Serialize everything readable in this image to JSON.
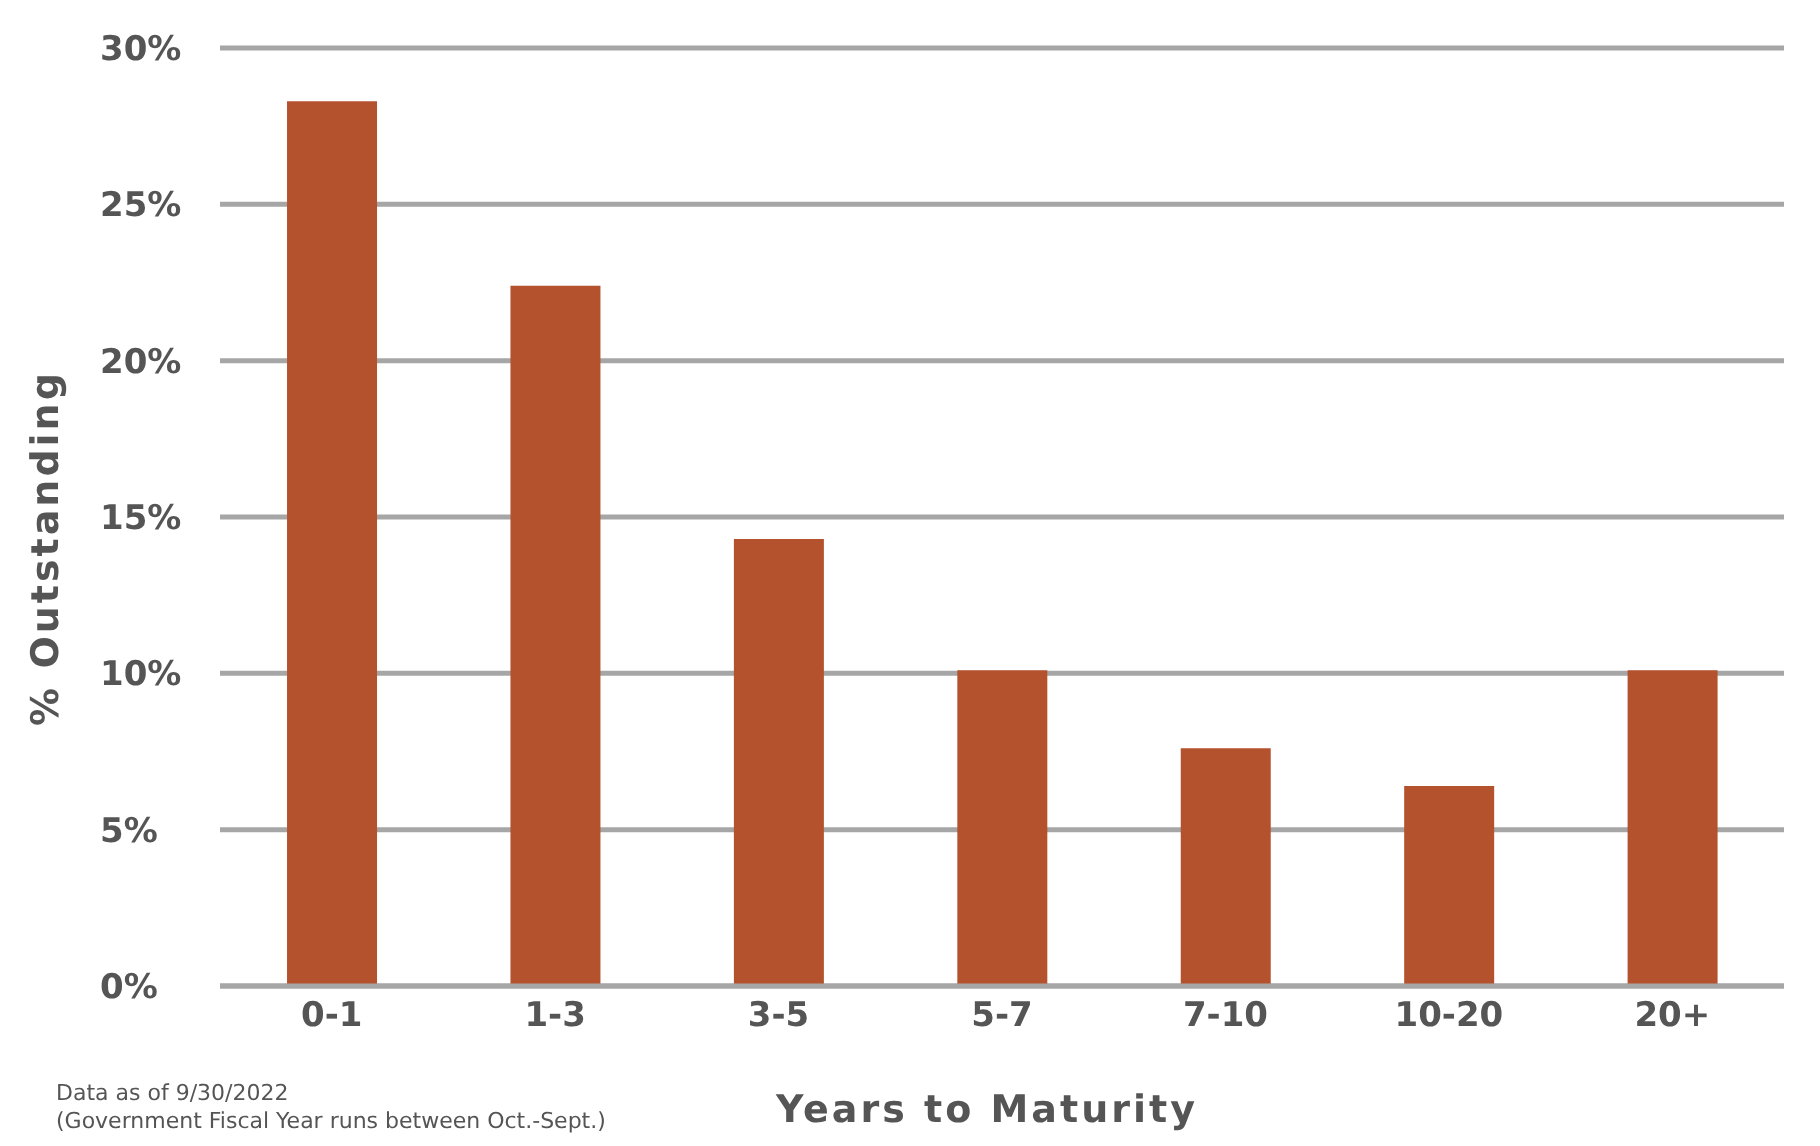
{
  "chart_data": {
    "type": "bar",
    "xlabel": "Years to Maturity",
    "ylabel": "% Outstanding",
    "categories": [
      "0-1",
      "1-3",
      "3-5",
      "5-7",
      "7-10",
      "10-20",
      "20+"
    ],
    "values": [
      28.3,
      22.4,
      14.3,
      10.1,
      7.6,
      6.4,
      10.1
    ],
    "color": "#b5522e",
    "ylim": [
      0,
      30
    ],
    "yticks": [
      {
        "value": 0,
        "label": "0%"
      },
      {
        "value": 5,
        "label": "5%"
      },
      {
        "value": 10,
        "label": "10%"
      },
      {
        "value": 15,
        "label": "15%"
      },
      {
        "value": 20,
        "label": "20%"
      },
      {
        "value": 25,
        "label": "25%"
      },
      {
        "value": 30,
        "label": "30%"
      }
    ],
    "grid": "y",
    "legend": false,
    "annotations": [
      "Data as of 9/30/2022",
      "(Government Fiscal Year runs between Oct.-Sept.)"
    ]
  }
}
